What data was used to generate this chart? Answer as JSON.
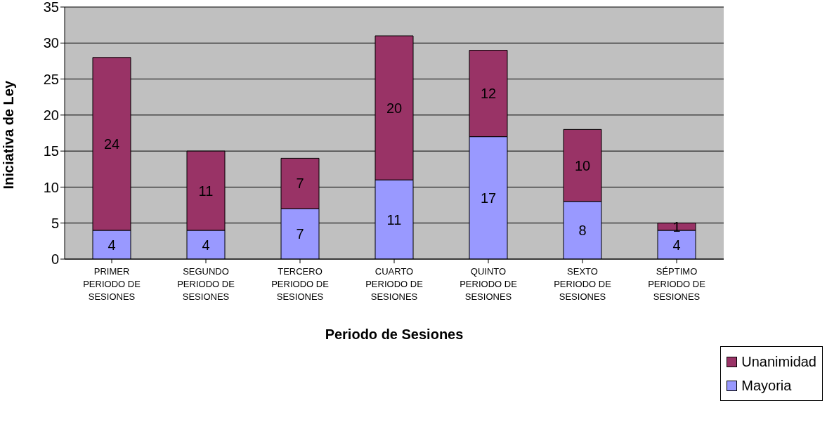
{
  "chart_data": {
    "type": "bar",
    "stacked": true,
    "xlabel": "Periodo de Sesiones",
    "ylabel": "Iniciativa de Ley",
    "categories": [
      "PRIMER PERIODO DE SESIONES",
      "SEGUNDO PERIODO DE SESIONES",
      "TERCERO PERIODO DE SESIONES",
      "CUARTO PERIODO DE SESIONES",
      "QUINTO PERIODO DE SESIONES",
      "SEXTO PERIODO DE SESIONES",
      "SÉPTIMO PERIODO DE SESIONES"
    ],
    "series": [
      {
        "name": "Mayoria",
        "color": "#9999ff",
        "values": [
          4,
          4,
          7,
          11,
          17,
          8,
          4
        ]
      },
      {
        "name": "Unanimidad",
        "color": "#993366",
        "values": [
          24,
          11,
          7,
          20,
          12,
          10,
          1
        ]
      }
    ],
    "ylim": [
      0,
      35
    ],
    "yticks": [
      0,
      5,
      10,
      15,
      20,
      25,
      30,
      35
    ],
    "grid": "y",
    "data_labels": true,
    "legend": "bottom right"
  }
}
